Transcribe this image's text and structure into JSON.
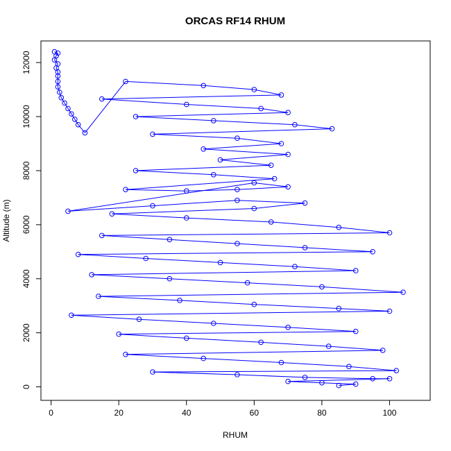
{
  "chart_data": {
    "type": "line",
    "title": "ORCAS RF14 RHUM",
    "xlabel": "RHUM",
    "ylabel": "Altitude (m)",
    "xlim": [
      -3,
      112
    ],
    "ylim": [
      -500,
      12800
    ],
    "xticks": [
      0,
      20,
      40,
      60,
      80,
      100
    ],
    "yticks": [
      0,
      2000,
      4000,
      6000,
      8000,
      10000,
      12000
    ],
    "color": "#0000ff",
    "marker": "open-circle",
    "series": [
      {
        "name": "",
        "points": [
          [
            1,
            12400
          ],
          [
            2,
            12350
          ],
          [
            1.5,
            12250
          ],
          [
            1,
            12100
          ],
          [
            2,
            11950
          ],
          [
            1.5,
            11800
          ],
          [
            2,
            11650
          ],
          [
            2,
            11500
          ],
          [
            2,
            11300
          ],
          [
            2,
            11100
          ],
          [
            2.5,
            10900
          ],
          [
            3,
            10700
          ],
          [
            4,
            10500
          ],
          [
            5,
            10300
          ],
          [
            6,
            10100
          ],
          [
            7,
            9900
          ],
          [
            8,
            9700
          ],
          [
            10,
            9400
          ],
          [
            22,
            11300
          ],
          [
            45,
            11150
          ],
          [
            60,
            11000
          ],
          [
            68,
            10800
          ],
          [
            15,
            10650
          ],
          [
            40,
            10450
          ],
          [
            62,
            10300
          ],
          [
            70,
            10150
          ],
          [
            25,
            10000
          ],
          [
            48,
            9850
          ],
          [
            72,
            9700
          ],
          [
            83,
            9550
          ],
          [
            30,
            9350
          ],
          [
            55,
            9200
          ],
          [
            68,
            9000
          ],
          [
            45,
            8800
          ],
          [
            70,
            8600
          ],
          [
            50,
            8400
          ],
          [
            65,
            8200
          ],
          [
            25,
            8000
          ],
          [
            48,
            7850
          ],
          [
            66,
            7700
          ],
          [
            22,
            7300
          ],
          [
            40,
            7250
          ],
          [
            55,
            7300
          ],
          [
            70,
            7400
          ],
          [
            60,
            7550
          ],
          [
            5,
            6500
          ],
          [
            30,
            6700
          ],
          [
            55,
            6900
          ],
          [
            75,
            6800
          ],
          [
            60,
            6600
          ],
          [
            18,
            6400
          ],
          [
            40,
            6250
          ],
          [
            65,
            6100
          ],
          [
            85,
            5900
          ],
          [
            100,
            5700
          ],
          [
            15,
            5600
          ],
          [
            35,
            5450
          ],
          [
            55,
            5300
          ],
          [
            75,
            5150
          ],
          [
            95,
            5000
          ],
          [
            8,
            4900
          ],
          [
            28,
            4750
          ],
          [
            50,
            4600
          ],
          [
            72,
            4450
          ],
          [
            90,
            4300
          ],
          [
            12,
            4150
          ],
          [
            35,
            4000
          ],
          [
            58,
            3850
          ],
          [
            80,
            3700
          ],
          [
            104,
            3500
          ],
          [
            14,
            3350
          ],
          [
            38,
            3200
          ],
          [
            60,
            3050
          ],
          [
            85,
            2900
          ],
          [
            100,
            2800
          ],
          [
            6,
            2650
          ],
          [
            26,
            2500
          ],
          [
            48,
            2350
          ],
          [
            70,
            2200
          ],
          [
            90,
            2050
          ],
          [
            20,
            1950
          ],
          [
            40,
            1800
          ],
          [
            62,
            1650
          ],
          [
            82,
            1500
          ],
          [
            98,
            1350
          ],
          [
            22,
            1200
          ],
          [
            45,
            1050
          ],
          [
            68,
            900
          ],
          [
            88,
            750
          ],
          [
            102,
            600
          ],
          [
            30,
            550
          ],
          [
            55,
            450
          ],
          [
            75,
            350
          ],
          [
            95,
            300
          ],
          [
            100,
            300
          ],
          [
            70,
            200
          ],
          [
            80,
            150
          ],
          [
            90,
            100
          ],
          [
            85,
            50
          ]
        ]
      }
    ]
  }
}
